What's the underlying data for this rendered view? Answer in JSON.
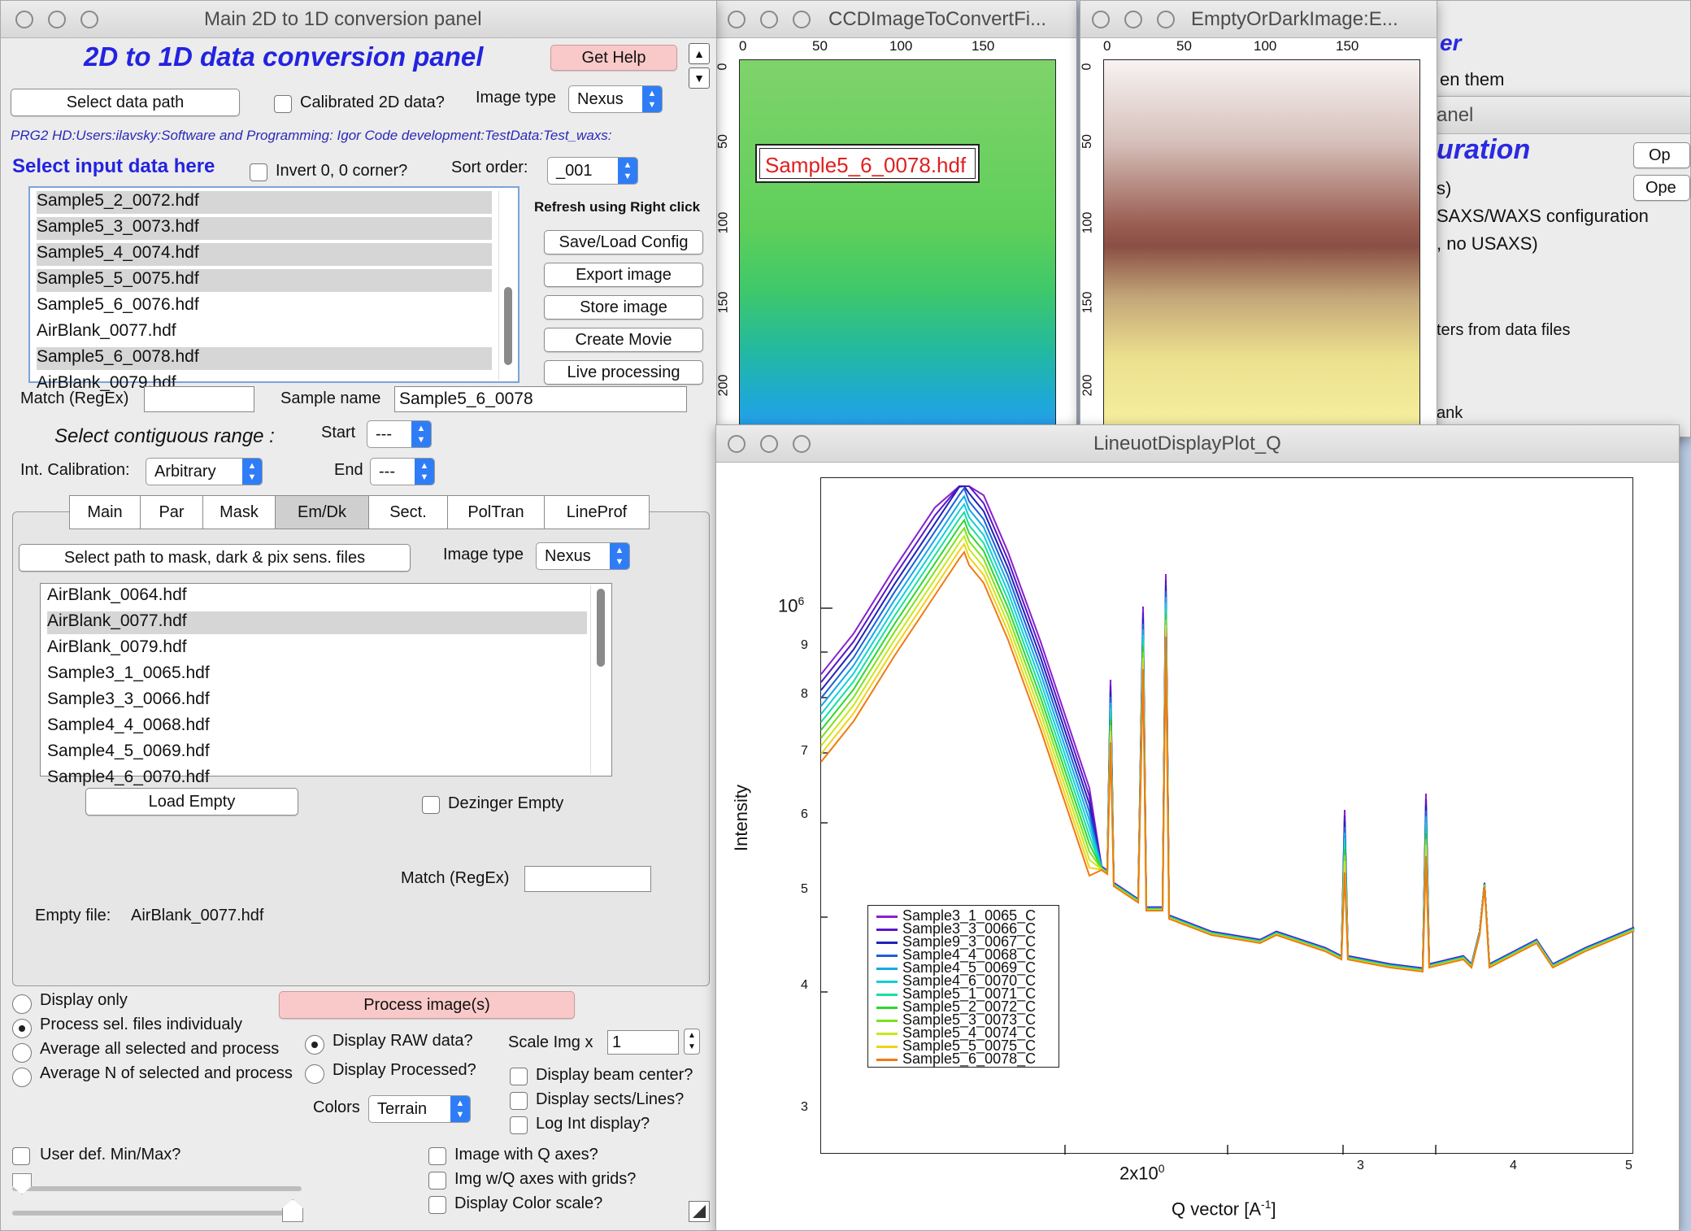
{
  "main": {
    "title": "Main 2D to 1D conversion panel",
    "heading": "2D to 1D data conversion panel",
    "get_help": "Get Help",
    "select_data_path": "Select data path",
    "calibrated_label": "Calibrated 2D data?",
    "image_type_label": "Image type",
    "image_type_value": "Nexus",
    "path_text": "PRG2 HD:Users:ilavsky:Software and Programming: Igor Code development:TestData:Test_waxs:",
    "select_input": "Select input data here",
    "invert_label": "Invert 0, 0 corner?",
    "sort_label": "Sort order:",
    "sort_value": "_001",
    "refresh_label": "Refresh using Right click",
    "files": [
      {
        "name": "Sample5_2_0072.hdf",
        "hl": true
      },
      {
        "name": "Sample5_3_0073.hdf",
        "hl": true
      },
      {
        "name": "Sample5_4_0074.hdf",
        "hl": true
      },
      {
        "name": "Sample5_5_0075.hdf",
        "hl": true
      },
      {
        "name": "Sample5_6_0076.hdf",
        "hl": false
      },
      {
        "name": "AirBlank_0077.hdf",
        "hl": false
      },
      {
        "name": "Sample5_6_0078.hdf",
        "hl": true
      },
      {
        "name": "AirBlank_0079.hdf",
        "hl": false
      }
    ],
    "buttons": {
      "save_load": "Save/Load Config",
      "export": "Export image",
      "store": "Store image",
      "movie": "Create Movie",
      "live": "Live processing"
    },
    "match_label": "Match (RegEx)",
    "match_value": "",
    "sample_name_label": "Sample name",
    "sample_name_value": "Sample5_6_0078",
    "contig_label": "Select contiguous range  :",
    "start_label": "Start",
    "start_value": "---",
    "end_label": "End",
    "end_value": "---",
    "calib_label": "Int. Calibration:",
    "calib_value": "Arbitrary",
    "tabs": [
      "Main",
      "Par",
      "Mask",
      "Em/Dk",
      "Sect.",
      "PolTran",
      "LineProf"
    ],
    "active_tab": "Em/Dk",
    "select_mask_path": "Select path to mask, dark & pix sens. files",
    "image_type2_label": "Image type",
    "image_type2_value": "Nexus",
    "empty_files": [
      {
        "name": "AirBlank_0064.hdf",
        "hl": false
      },
      {
        "name": "AirBlank_0077.hdf",
        "hl": true
      },
      {
        "name": "AirBlank_0079.hdf",
        "hl": false
      },
      {
        "name": "Sample3_1_0065.hdf",
        "hl": false
      },
      {
        "name": "Sample3_3_0066.hdf",
        "hl": false
      },
      {
        "name": "Sample4_4_0068.hdf",
        "hl": false
      },
      {
        "name": "Sample4_5_0069.hdf",
        "hl": false
      },
      {
        "name": "Sample4_6_0070.hdf",
        "hl": false
      }
    ],
    "load_empty": "Load Empty",
    "dezinger_empty": "Dezinger Empty",
    "match2_label": "Match (RegEx)",
    "empty_file_label": "Empty file:",
    "empty_file_value": "AirBlank_0077.hdf",
    "radios": {
      "display_only": "Display only",
      "process_individ": "Process sel. files individualy",
      "avg_all": "Average all selected and process",
      "avg_n": "Average N of selected and process"
    },
    "process_btn": "Process image(s)",
    "display_raw": "Display RAW data?",
    "display_processed": "Display Processed?",
    "scale_label": "Scale Img x",
    "scale_value": "1",
    "colors_label": "Colors",
    "colors_value": "Terrain",
    "beam_center": "Display beam center?",
    "sects_lines": "Display sects/Lines?",
    "log_int": "Log Int display?",
    "user_minmax": "User def. Min/Max?",
    "q_axes": "Image with Q axes?",
    "q_grids": "Img w/Q axes with grids?",
    "color_scale": "Display Color scale?"
  },
  "ccd": {
    "title": "CCDImageToConvertFi...",
    "xticks": [
      "0",
      "50",
      "100",
      "150"
    ],
    "yticks": [
      "0",
      "50",
      "100",
      "150",
      "200"
    ],
    "tag": "Sample5_6_0078.hdf"
  },
  "empty": {
    "title": "EmptyOrDarkImage:E...",
    "xticks": [
      "0",
      "50",
      "100",
      "150"
    ],
    "yticks": [
      "0",
      "50",
      "100",
      "150",
      "200"
    ]
  },
  "back": {
    "t1": "er",
    "t2": "en them",
    "t3": "anel",
    "t4": "uration",
    "t5": "s)",
    "t6": "SAXS/WAXS configuration",
    "t7": ", no USAXS)",
    "t8": "ters from data files",
    "t9": "ank",
    "b1": "Op",
    "b2": "Ope"
  },
  "plot": {
    "title": "LineuotDisplayPlot_Q",
    "ylabel": "Intensity",
    "xlabel": "Q vector [A",
    "xlabel_sup": "-1",
    "xlabel_end": "]",
    "ytick_main": "10",
    "ytick_main_sup": "6",
    "yticks_minor": [
      "9",
      "8",
      "7",
      "6",
      "5",
      "4",
      "3"
    ],
    "xtick_main": "2x10",
    "xtick_main_sup": "0",
    "xticks_minor": [
      "3",
      "4",
      "5"
    ],
    "legend": [
      {
        "name": "Sample3_1_0065_C",
        "color": "#8a1fd0"
      },
      {
        "name": "Sample3_3_0066_C",
        "color": "#5a16c8"
      },
      {
        "name": "Sample9_3_0067_C",
        "color": "#2222b8"
      },
      {
        "name": "Sample4_4_0068_C",
        "color": "#1e5fd8"
      },
      {
        "name": "Sample4_5_0069_C",
        "color": "#15a8e8"
      },
      {
        "name": "Sample4_6_0070_C",
        "color": "#12d0d6"
      },
      {
        "name": "Sample5_1_0071_C",
        "color": "#14e0a0"
      },
      {
        "name": "Sample5_2_0072_C",
        "color": "#2fd62f"
      },
      {
        "name": "Sample5_3_0073_C",
        "color": "#7ee01e"
      },
      {
        "name": "Sample5_4_0074_C",
        "color": "#c8e81a"
      },
      {
        "name": "Sample5_5_0075_C",
        "color": "#f0d21a"
      },
      {
        "name": "Sample5_6_0078_C",
        "color": "#f07a10"
      }
    ]
  }
}
